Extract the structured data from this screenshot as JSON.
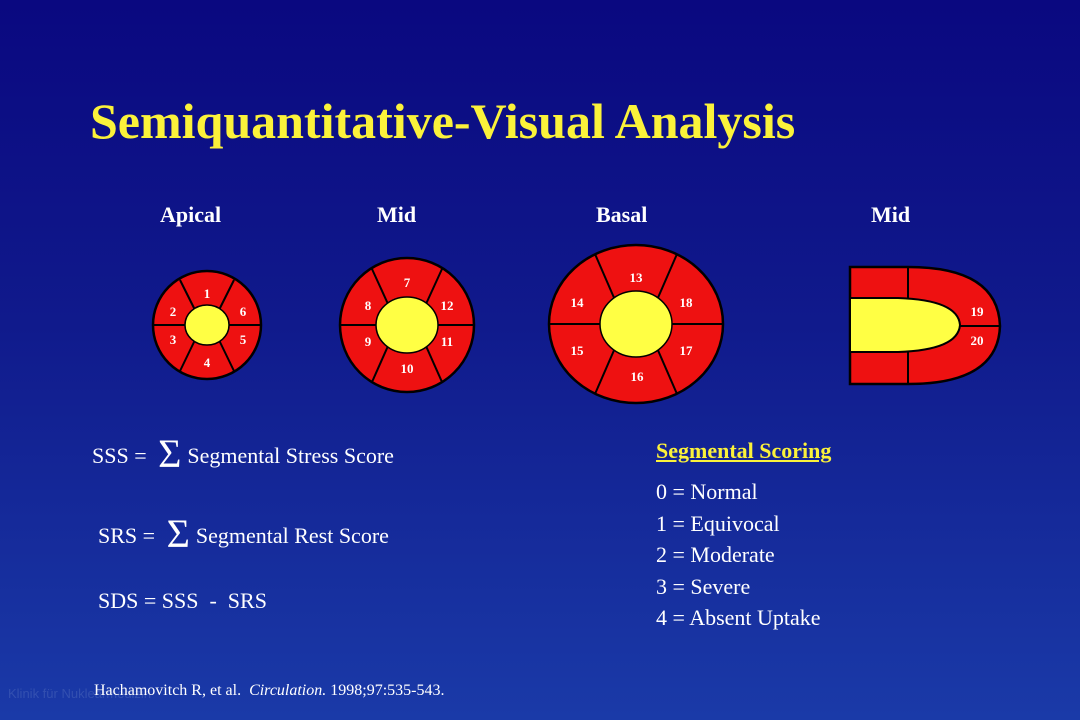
{
  "title": "Semiquantitative-Visual Analysis",
  "section_labels": {
    "apical": "Apical",
    "mid": "Mid",
    "basal": "Basal",
    "mid_long": "Mid"
  },
  "segments": {
    "apical": [
      "1",
      "2",
      "3",
      "4",
      "5",
      "6"
    ],
    "mid": [
      "7",
      "8",
      "9",
      "10",
      "11",
      "12"
    ],
    "basal": [
      "13",
      "14",
      "15",
      "16",
      "17",
      "18"
    ],
    "long_axis": [
      "19",
      "20"
    ]
  },
  "formulas": {
    "sss": {
      "prefix": "SSS = ",
      "sigma": "Σ",
      "text": "Segmental Stress Score"
    },
    "srs": {
      "prefix": "SRS = ",
      "sigma": "Σ",
      "text": "Segmental Rest Score"
    },
    "sds": "SDS = SSS  -  SRS"
  },
  "scoring": {
    "title": "Segmental Scoring",
    "items": [
      "0 = Normal",
      "1 = Equivocal",
      "2 = Moderate",
      "3 = Severe",
      "4 = Absent Uptake"
    ]
  },
  "citation": {
    "authors": "Hachamovitch R, et al.",
    "journal": "Circulation.",
    "details": "1998;97:535-543."
  },
  "watermark": "Klinik für Nuklearmedizin",
  "colors": {
    "background": "#0a0880",
    "title": "#fbf23a",
    "segment_fill": "#ee1111",
    "cavity_fill": "#ffff44",
    "outline": "#000000",
    "text": "#ffffff"
  }
}
